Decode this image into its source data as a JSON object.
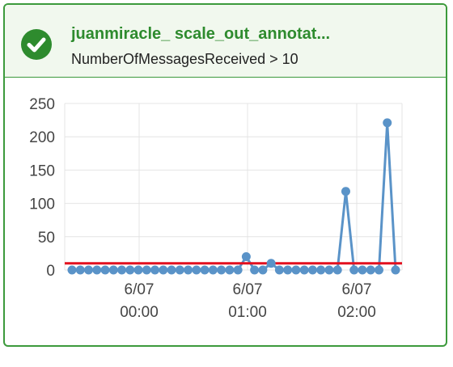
{
  "alarm": {
    "name": "juanmiracle_ scale_out_annotat...",
    "condition": "NumberOfMessagesReceived > 10",
    "state_icon": "check-circle-icon",
    "state_color": "#2e8b2e",
    "threshold_color": "#e3101f",
    "series_color": "#5a93c8"
  },
  "chart_data": {
    "type": "line",
    "ylim": [
      0,
      250
    ],
    "yticks": [
      "0",
      "50",
      "100",
      "150",
      "200",
      "250"
    ],
    "xticks": [
      {
        "date": "6/07",
        "time": "00:00"
      },
      {
        "date": "6/07",
        "time": "01:00"
      },
      {
        "date": "6/07",
        "time": "02:00"
      }
    ],
    "threshold": 10,
    "series": [
      {
        "values": [
          0,
          0,
          0,
          0,
          0,
          0,
          0,
          0,
          0,
          0,
          0,
          0,
          0,
          0,
          0,
          0,
          0,
          0,
          0,
          0,
          0,
          20,
          0,
          0,
          10,
          0,
          0,
          0,
          0,
          0,
          0,
          0,
          0,
          118,
          0,
          0,
          0,
          0,
          221,
          0
        ]
      }
    ],
    "grid": true
  }
}
